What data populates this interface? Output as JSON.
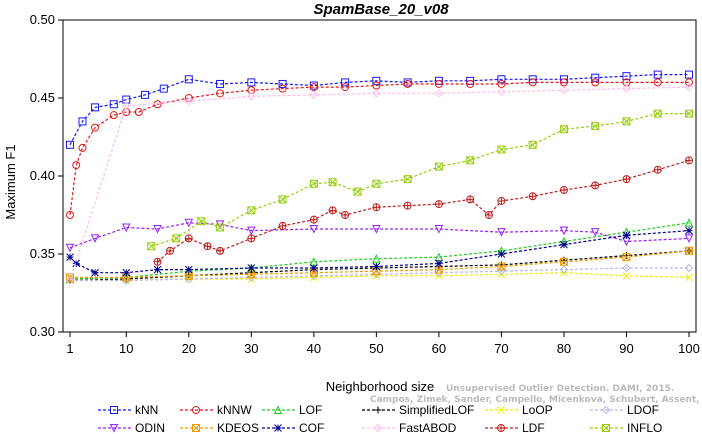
{
  "chart_data": {
    "type": "line",
    "title": "SpamBase_20_v08",
    "xlabel": "Neighborhood size",
    "ylabel": "Maximum F1",
    "xlim": [
      1,
      100
    ],
    "ylim": [
      0.3,
      0.5
    ],
    "xticks": [
      1,
      10,
      20,
      30,
      40,
      50,
      60,
      70,
      80,
      90,
      100
    ],
    "yticks": [
      0.3,
      0.35,
      0.4,
      0.45,
      0.5
    ],
    "ytick_labels": [
      "0.30",
      "0.35",
      "0.40",
      "0.45",
      "0.50"
    ],
    "grid": false,
    "legend_position": "bottom",
    "credit": {
      "line1": "Unsupervised Outlier Detection. DAMI, 2015.",
      "line2": "Campos, Zimek, Sander, Campello, Micenkova, Schubert, Assent, Houle"
    },
    "series": [
      {
        "name": "kNN",
        "color": "#1a1aee",
        "marker": "square",
        "x": [
          1,
          3,
          5,
          8,
          10,
          13,
          16,
          20,
          25,
          30,
          35,
          40,
          45,
          50,
          55,
          60,
          65,
          70,
          75,
          80,
          85,
          90,
          95,
          100
        ],
        "values": [
          0.42,
          0.435,
          0.444,
          0.446,
          0.449,
          0.452,
          0.456,
          0.462,
          0.459,
          0.46,
          0.459,
          0.458,
          0.46,
          0.461,
          0.46,
          0.461,
          0.461,
          0.462,
          0.462,
          0.462,
          0.463,
          0.464,
          0.465,
          0.465
        ]
      },
      {
        "name": "kNNW",
        "color": "#e11a1a",
        "marker": "circle",
        "x": [
          1,
          2,
          3,
          5,
          8,
          10,
          12,
          15,
          20,
          25,
          30,
          35,
          40,
          45,
          50,
          55,
          60,
          65,
          70,
          75,
          80,
          85,
          90,
          95,
          100
        ],
        "values": [
          0.375,
          0.407,
          0.418,
          0.431,
          0.439,
          0.441,
          0.441,
          0.446,
          0.45,
          0.453,
          0.455,
          0.456,
          0.457,
          0.457,
          0.458,
          0.459,
          0.459,
          0.459,
          0.459,
          0.46,
          0.46,
          0.46,
          0.46,
          0.46,
          0.46
        ]
      },
      {
        "name": "LOF",
        "color": "#22cc22",
        "marker": "triangle-up",
        "x": [
          1,
          10,
          20,
          30,
          40,
          50,
          60,
          70,
          80,
          90,
          100
        ],
        "values": [
          0.334,
          0.335,
          0.339,
          0.341,
          0.345,
          0.347,
          0.348,
          0.352,
          0.358,
          0.364,
          0.37
        ]
      },
      {
        "name": "SimplifiedLOF",
        "color": "#000000",
        "marker": "plus",
        "x": [
          1,
          10,
          20,
          30,
          40,
          50,
          60,
          70,
          80,
          90,
          100
        ],
        "values": [
          0.333,
          0.334,
          0.336,
          0.338,
          0.34,
          0.341,
          0.342,
          0.343,
          0.346,
          0.349,
          0.352
        ]
      },
      {
        "name": "LoOP",
        "color": "#eeee00",
        "marker": "x",
        "x": [
          1,
          10,
          20,
          30,
          40,
          50,
          60,
          70,
          80,
          90,
          100
        ],
        "values": [
          0.333,
          0.333,
          0.334,
          0.334,
          0.335,
          0.336,
          0.336,
          0.337,
          0.338,
          0.336,
          0.335
        ]
      },
      {
        "name": "LDOF",
        "color": "#b8b8e8",
        "marker": "diamond",
        "x": [
          1,
          10,
          20,
          30,
          40,
          50,
          60,
          70,
          80,
          90,
          100
        ],
        "values": [
          0.333,
          0.333,
          0.334,
          0.335,
          0.336,
          0.337,
          0.338,
          0.339,
          0.34,
          0.341,
          0.341
        ]
      },
      {
        "name": "ODIN",
        "color": "#9922ee",
        "marker": "triangle-down",
        "x": [
          1,
          5,
          10,
          15,
          20,
          25,
          30,
          40,
          50,
          60,
          70,
          80,
          85,
          90,
          100
        ],
        "values": [
          0.354,
          0.36,
          0.367,
          0.366,
          0.37,
          0.369,
          0.365,
          0.366,
          0.366,
          0.366,
          0.364,
          0.365,
          0.364,
          0.358,
          0.36
        ]
      },
      {
        "name": "KDEOS",
        "color": "#ee9900",
        "marker": "square-x",
        "x": [
          1,
          10,
          20,
          30,
          40,
          50,
          60,
          70,
          80,
          90,
          100
        ],
        "values": [
          0.335,
          0.335,
          0.336,
          0.337,
          0.338,
          0.339,
          0.34,
          0.342,
          0.345,
          0.348,
          0.352
        ]
      },
      {
        "name": "COF",
        "color": "#00008b",
        "marker": "asterisk",
        "x": [
          1,
          2,
          5,
          10,
          15,
          20,
          30,
          40,
          50,
          60,
          70,
          80,
          90,
          100
        ],
        "values": [
          0.348,
          0.344,
          0.338,
          0.338,
          0.34,
          0.34,
          0.341,
          0.341,
          0.342,
          0.344,
          0.35,
          0.356,
          0.362,
          0.365
        ]
      },
      {
        "name": "FastABOD",
        "color": "#ffbbee",
        "marker": "diamond",
        "x": [
          1,
          10,
          20,
          30,
          40,
          50,
          60,
          70,
          80,
          90,
          100
        ],
        "values": [
          0.333,
          0.445,
          0.448,
          0.451,
          0.452,
          0.453,
          0.453,
          0.454,
          0.455,
          0.456,
          0.457
        ]
      },
      {
        "name": "LDF",
        "color": "#bb2222",
        "marker": "circle-plus",
        "x": [
          15,
          17,
          20,
          23,
          25,
          30,
          35,
          40,
          43,
          45,
          50,
          55,
          60,
          65,
          68,
          70,
          75,
          80,
          85,
          90,
          95,
          100
        ],
        "values": [
          0.345,
          0.352,
          0.36,
          0.355,
          0.352,
          0.36,
          0.368,
          0.372,
          0.378,
          0.375,
          0.38,
          0.381,
          0.382,
          0.385,
          0.375,
          0.384,
          0.387,
          0.391,
          0.394,
          0.398,
          0.404,
          0.41
        ]
      },
      {
        "name": "INFLO",
        "color": "#99cc11",
        "marker": "square-x",
        "x": [
          14,
          18,
          22,
          25,
          30,
          35,
          40,
          43,
          47,
          50,
          55,
          60,
          65,
          70,
          75,
          80,
          85,
          90,
          95,
          100
        ],
        "values": [
          0.355,
          0.36,
          0.371,
          0.367,
          0.378,
          0.385,
          0.395,
          0.396,
          0.39,
          0.395,
          0.398,
          0.406,
          0.41,
          0.417,
          0.42,
          0.43,
          0.432,
          0.435,
          0.44,
          0.44
        ]
      }
    ]
  }
}
